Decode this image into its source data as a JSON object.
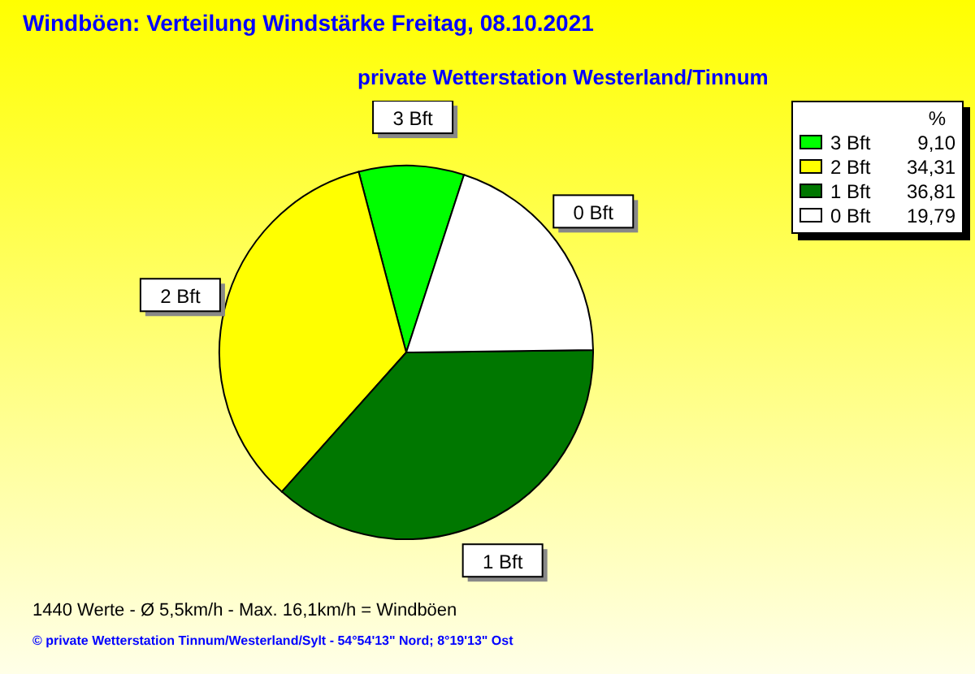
{
  "chart_data": {
    "type": "pie",
    "title": "Windböen: Verteilung Windstärke  Freitag, 08.10.2021",
    "subtitle": "private Wetterstation Westerland/Tinnum",
    "categories": [
      "3 Bft",
      "2 Bft",
      "1 Bft",
      "0 Bft"
    ],
    "values": [
      9.1,
      34.31,
      36.81,
      19.79
    ],
    "value_labels": [
      "9,10",
      "34,31",
      "36,81",
      "19,79"
    ],
    "colors": [
      "#00ff00",
      "#ffff00",
      "#007700",
      "#ffffff"
    ],
    "legend": "top right",
    "legend_title": "%",
    "annotations": [
      "1440 Werte    -   Ø 5,5km/h  -  Max. 16,1km/h = Windböen",
      "© private Wetterstation Tinnum/Westerland/Sylt   -   54°54'13\" Nord; 8°19'13\" Ost"
    ]
  }
}
